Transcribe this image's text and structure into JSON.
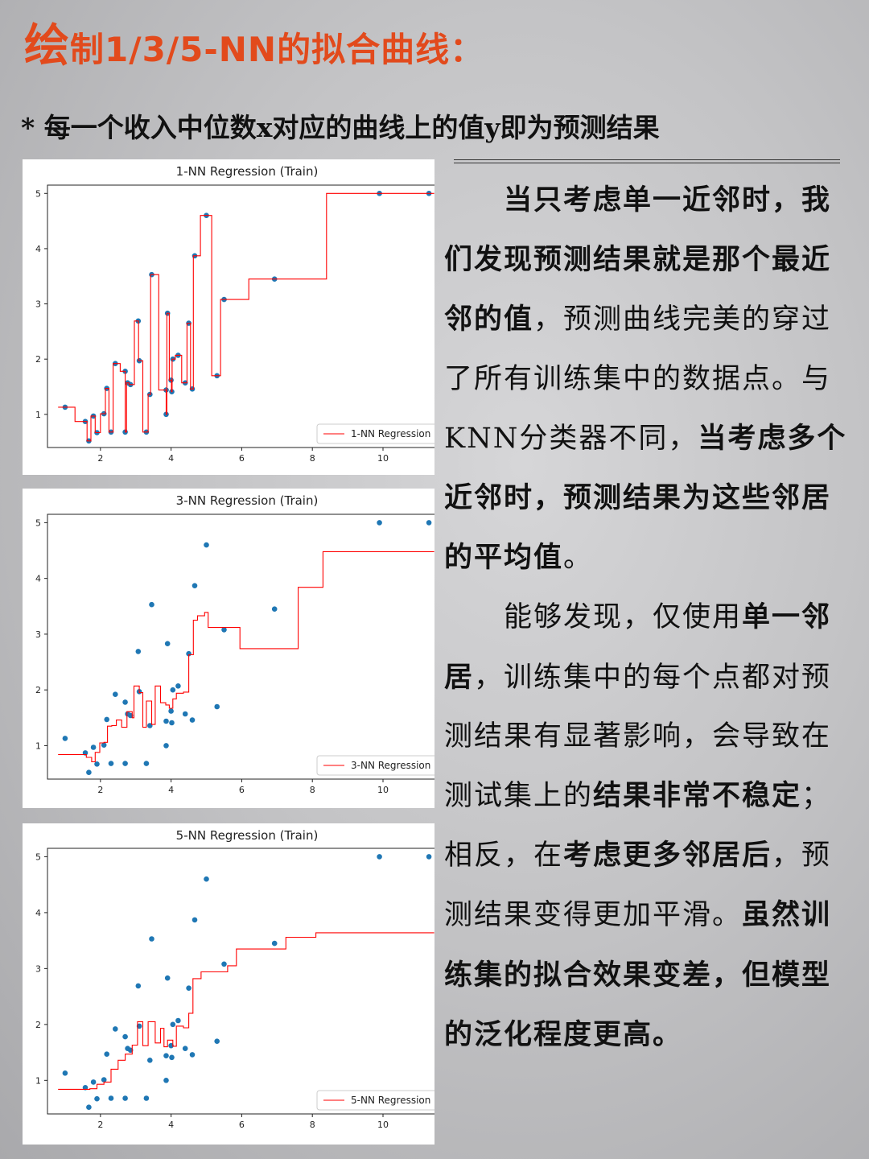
{
  "header": {
    "title_first": "绘",
    "title_rest": "制1/3/5-NN的拟合曲线：",
    "subtitle": "* 每一个收入中位数x对应的曲线上的值y即为预测结果"
  },
  "article": {
    "paragraphs": [
      [
        {
          "t": "　　当只考虑单一近邻时，我们发现预测结果就是那个最近邻的值",
          "b": true
        },
        {
          "t": "，预测曲线完美的穿过了所有训练集中的数据点。与KNN分类器不同，",
          "b": false
        },
        {
          "t": "当考虑多个近邻时，预测结果为这些邻居的平均值",
          "b": true
        },
        {
          "t": "。",
          "b": false
        }
      ],
      [
        {
          "t": "　　能够发现，仅使用",
          "b": false
        },
        {
          "t": "单一邻居",
          "b": true
        },
        {
          "t": "，训练集中的每个点都对预测结果有显著影响，会导致在测试集上的",
          "b": false
        },
        {
          "t": "结果非常不稳定",
          "b": true
        },
        {
          "t": "；相反，在",
          "b": false
        },
        {
          "t": "考虑更多邻居后",
          "b": true
        },
        {
          "t": "，预测结果变得更加平滑。",
          "b": false
        },
        {
          "t": "虽然训练集的拟合效果变差，但模型的泛化程度更高。",
          "b": true
        }
      ]
    ]
  },
  "colors": {
    "point": "#1f77b4",
    "line": "#ff0000",
    "title": "#e24a1c"
  },
  "chart_data": [
    {
      "type": "scatter+step",
      "title": "1-NN Regression (Train)",
      "legend": "1-NN Regression",
      "legend_position": "bottom-right",
      "xlim": [
        0.5,
        11.8
      ],
      "ylim": [
        0.4,
        5.15
      ],
      "xticks": [
        2,
        4,
        6,
        8,
        10
      ],
      "yticks": [
        1,
        2,
        3,
        4,
        5
      ],
      "grid": false,
      "points": [
        [
          1.0,
          1.13
        ],
        [
          1.57,
          0.87
        ],
        [
          1.67,
          0.52
        ],
        [
          1.8,
          0.97
        ],
        [
          1.9,
          0.67
        ],
        [
          2.1,
          1.01
        ],
        [
          2.18,
          1.47
        ],
        [
          2.3,
          0.68
        ],
        [
          2.42,
          1.92
        ],
        [
          2.7,
          1.78
        ],
        [
          2.7,
          0.68
        ],
        [
          2.77,
          1.57
        ],
        [
          2.85,
          1.54
        ],
        [
          3.07,
          2.69
        ],
        [
          3.1,
          1.97
        ],
        [
          3.3,
          0.68
        ],
        [
          3.4,
          1.36
        ],
        [
          3.45,
          3.53
        ],
        [
          3.86,
          1.44
        ],
        [
          3.86,
          1.0
        ],
        [
          3.9,
          2.83
        ],
        [
          4.0,
          1.62
        ],
        [
          4.02,
          1.41
        ],
        [
          4.05,
          2.0
        ],
        [
          4.2,
          2.07
        ],
        [
          4.4,
          1.57
        ],
        [
          4.5,
          2.65
        ],
        [
          4.6,
          1.46
        ],
        [
          4.67,
          3.87
        ],
        [
          5.0,
          4.6
        ],
        [
          5.3,
          1.7
        ],
        [
          5.5,
          3.08
        ],
        [
          6.93,
          3.45
        ],
        [
          9.9,
          5.0
        ],
        [
          11.3,
          5.0
        ]
      ],
      "line": [
        [
          0.8,
          1.13
        ],
        [
          1.28,
          1.13
        ],
        [
          1.28,
          0.87
        ],
        [
          1.62,
          0.87
        ],
        [
          1.62,
          0.52
        ],
        [
          1.73,
          0.52
        ],
        [
          1.73,
          0.97
        ],
        [
          1.85,
          0.97
        ],
        [
          1.85,
          0.67
        ],
        [
          2.0,
          0.67
        ],
        [
          2.0,
          1.01
        ],
        [
          2.14,
          1.01
        ],
        [
          2.14,
          1.47
        ],
        [
          2.24,
          1.47
        ],
        [
          2.24,
          0.68
        ],
        [
          2.36,
          0.68
        ],
        [
          2.36,
          1.92
        ],
        [
          2.56,
          1.92
        ],
        [
          2.56,
          1.78
        ],
        [
          2.7,
          1.78
        ],
        [
          2.7,
          0.68
        ],
        [
          2.74,
          0.68
        ],
        [
          2.74,
          1.57
        ],
        [
          2.81,
          1.57
        ],
        [
          2.81,
          1.54
        ],
        [
          2.96,
          1.54
        ],
        [
          2.96,
          2.69
        ],
        [
          3.08,
          2.69
        ],
        [
          3.08,
          1.97
        ],
        [
          3.2,
          1.97
        ],
        [
          3.2,
          0.68
        ],
        [
          3.35,
          0.68
        ],
        [
          3.35,
          1.36
        ],
        [
          3.42,
          1.36
        ],
        [
          3.42,
          3.53
        ],
        [
          3.65,
          3.53
        ],
        [
          3.65,
          1.44
        ],
        [
          3.86,
          1.44
        ],
        [
          3.86,
          1.0
        ],
        [
          3.88,
          1.0
        ],
        [
          3.88,
          2.83
        ],
        [
          3.95,
          2.83
        ],
        [
          3.95,
          1.62
        ],
        [
          4.01,
          1.62
        ],
        [
          4.01,
          1.41
        ],
        [
          4.03,
          1.41
        ],
        [
          4.03,
          2.0
        ],
        [
          4.12,
          2.0
        ],
        [
          4.12,
          2.07
        ],
        [
          4.3,
          2.07
        ],
        [
          4.3,
          1.57
        ],
        [
          4.45,
          1.57
        ],
        [
          4.45,
          2.65
        ],
        [
          4.55,
          2.65
        ],
        [
          4.55,
          1.46
        ],
        [
          4.63,
          1.46
        ],
        [
          4.63,
          3.87
        ],
        [
          4.83,
          3.87
        ],
        [
          4.83,
          4.6
        ],
        [
          5.15,
          4.6
        ],
        [
          5.15,
          1.7
        ],
        [
          5.4,
          1.7
        ],
        [
          5.4,
          3.08
        ],
        [
          6.2,
          3.08
        ],
        [
          6.2,
          3.45
        ],
        [
          8.4,
          3.45
        ],
        [
          8.4,
          5.0
        ],
        [
          11.45,
          5.0
        ]
      ]
    },
    {
      "type": "scatter+step",
      "title": "3-NN Regression (Train)",
      "legend": "3-NN Regression",
      "legend_position": "bottom-right",
      "xlim": [
        0.5,
        11.8
      ],
      "ylim": [
        0.4,
        5.15
      ],
      "xticks": [
        2,
        4,
        6,
        8,
        10
      ],
      "yticks": [
        1,
        2,
        3,
        4,
        5
      ],
      "grid": false,
      "points": [
        [
          1.0,
          1.13
        ],
        [
          1.57,
          0.87
        ],
        [
          1.67,
          0.52
        ],
        [
          1.8,
          0.97
        ],
        [
          1.9,
          0.67
        ],
        [
          2.1,
          1.01
        ],
        [
          2.18,
          1.47
        ],
        [
          2.3,
          0.68
        ],
        [
          2.42,
          1.92
        ],
        [
          2.7,
          1.78
        ],
        [
          2.7,
          0.68
        ],
        [
          2.77,
          1.57
        ],
        [
          2.85,
          1.54
        ],
        [
          3.07,
          2.69
        ],
        [
          3.1,
          1.97
        ],
        [
          3.3,
          0.68
        ],
        [
          3.4,
          1.36
        ],
        [
          3.45,
          3.53
        ],
        [
          3.86,
          1.44
        ],
        [
          3.86,
          1.0
        ],
        [
          3.9,
          2.83
        ],
        [
          4.0,
          1.62
        ],
        [
          4.02,
          1.41
        ],
        [
          4.05,
          2.0
        ],
        [
          4.2,
          2.07
        ],
        [
          4.4,
          1.57
        ],
        [
          4.5,
          2.65
        ],
        [
          4.6,
          1.46
        ],
        [
          4.67,
          3.87
        ],
        [
          5.0,
          4.6
        ],
        [
          5.3,
          1.7
        ],
        [
          5.5,
          3.08
        ],
        [
          6.93,
          3.45
        ],
        [
          9.9,
          5.0
        ],
        [
          11.3,
          5.0
        ]
      ],
      "line": [
        [
          0.8,
          0.84
        ],
        [
          1.6,
          0.84
        ],
        [
          1.6,
          0.79
        ],
        [
          1.75,
          0.79
        ],
        [
          1.75,
          0.71
        ],
        [
          1.85,
          0.71
        ],
        [
          1.85,
          0.88
        ],
        [
          1.98,
          0.88
        ],
        [
          1.98,
          1.05
        ],
        [
          2.1,
          1.05
        ],
        [
          2.1,
          1.06
        ],
        [
          2.2,
          1.06
        ],
        [
          2.2,
          1.35
        ],
        [
          2.32,
          1.35
        ],
        [
          2.32,
          1.36
        ],
        [
          2.45,
          1.36
        ],
        [
          2.45,
          1.46
        ],
        [
          2.6,
          1.46
        ],
        [
          2.6,
          1.33
        ],
        [
          2.75,
          1.33
        ],
        [
          2.75,
          1.61
        ],
        [
          2.9,
          1.61
        ],
        [
          2.9,
          1.5
        ],
        [
          2.95,
          1.5
        ],
        [
          2.95,
          2.07
        ],
        [
          3.1,
          2.07
        ],
        [
          3.1,
          1.95
        ],
        [
          3.2,
          1.95
        ],
        [
          3.2,
          1.33
        ],
        [
          3.3,
          1.33
        ],
        [
          3.3,
          1.8
        ],
        [
          3.45,
          1.8
        ],
        [
          3.45,
          1.38
        ],
        [
          3.55,
          1.38
        ],
        [
          3.55,
          2.07
        ],
        [
          3.7,
          2.07
        ],
        [
          3.7,
          1.77
        ],
        [
          3.85,
          1.77
        ],
        [
          3.85,
          1.73
        ],
        [
          3.95,
          1.73
        ],
        [
          3.95,
          1.67
        ],
        [
          4.05,
          1.67
        ],
        [
          4.05,
          1.84
        ],
        [
          4.15,
          1.84
        ],
        [
          4.15,
          1.94
        ],
        [
          4.35,
          1.94
        ],
        [
          4.35,
          1.96
        ],
        [
          4.5,
          1.96
        ],
        [
          4.5,
          2.63
        ],
        [
          4.63,
          2.63
        ],
        [
          4.63,
          3.25
        ],
        [
          4.75,
          3.25
        ],
        [
          4.75,
          3.33
        ],
        [
          4.95,
          3.33
        ],
        [
          4.95,
          3.39
        ],
        [
          5.05,
          3.39
        ],
        [
          5.05,
          3.12
        ],
        [
          5.95,
          3.12
        ],
        [
          5.95,
          2.74
        ],
        [
          7.6,
          2.74
        ],
        [
          7.6,
          3.84
        ],
        [
          8.3,
          3.84
        ],
        [
          8.3,
          4.48
        ],
        [
          11.45,
          4.48
        ]
      ]
    },
    {
      "type": "scatter+step",
      "title": "5-NN Regression (Train)",
      "legend": "5-NN Regression",
      "legend_position": "bottom-right",
      "xlim": [
        0.5,
        11.8
      ],
      "ylim": [
        0.4,
        5.15
      ],
      "xticks": [
        2,
        4,
        6,
        8,
        10
      ],
      "yticks": [
        1,
        2,
        3,
        4,
        5
      ],
      "grid": false,
      "points": [
        [
          1.0,
          1.13
        ],
        [
          1.57,
          0.87
        ],
        [
          1.67,
          0.52
        ],
        [
          1.8,
          0.97
        ],
        [
          1.9,
          0.67
        ],
        [
          2.1,
          1.01
        ],
        [
          2.18,
          1.47
        ],
        [
          2.3,
          0.68
        ],
        [
          2.42,
          1.92
        ],
        [
          2.7,
          1.78
        ],
        [
          2.7,
          0.68
        ],
        [
          2.77,
          1.57
        ],
        [
          2.85,
          1.54
        ],
        [
          3.07,
          2.69
        ],
        [
          3.1,
          1.97
        ],
        [
          3.3,
          0.68
        ],
        [
          3.4,
          1.36
        ],
        [
          3.45,
          3.53
        ],
        [
          3.86,
          1.44
        ],
        [
          3.86,
          1.0
        ],
        [
          3.9,
          2.83
        ],
        [
          4.0,
          1.62
        ],
        [
          4.02,
          1.41
        ],
        [
          4.05,
          2.0
        ],
        [
          4.2,
          2.07
        ],
        [
          4.4,
          1.57
        ],
        [
          4.5,
          2.65
        ],
        [
          4.6,
          1.46
        ],
        [
          4.67,
          3.87
        ],
        [
          5.0,
          4.6
        ],
        [
          5.3,
          1.7
        ],
        [
          5.5,
          3.08
        ],
        [
          6.93,
          3.45
        ],
        [
          9.9,
          5.0
        ],
        [
          11.3,
          5.0
        ]
      ],
      "line": [
        [
          0.8,
          0.84
        ],
        [
          1.7,
          0.84
        ],
        [
          1.7,
          0.85
        ],
        [
          1.9,
          0.85
        ],
        [
          1.9,
          0.93
        ],
        [
          2.1,
          0.93
        ],
        [
          2.1,
          0.97
        ],
        [
          2.3,
          0.97
        ],
        [
          2.3,
          1.2
        ],
        [
          2.5,
          1.2
        ],
        [
          2.5,
          1.36
        ],
        [
          2.7,
          1.36
        ],
        [
          2.7,
          1.47
        ],
        [
          2.9,
          1.47
        ],
        [
          2.9,
          1.63
        ],
        [
          3.05,
          1.63
        ],
        [
          3.05,
          2.05
        ],
        [
          3.2,
          2.05
        ],
        [
          3.2,
          1.62
        ],
        [
          3.35,
          1.62
        ],
        [
          3.35,
          2.05
        ],
        [
          3.55,
          2.05
        ],
        [
          3.55,
          1.67
        ],
        [
          3.7,
          1.67
        ],
        [
          3.7,
          1.93
        ],
        [
          3.8,
          1.93
        ],
        [
          3.8,
          1.6
        ],
        [
          3.9,
          1.6
        ],
        [
          3.9,
          1.72
        ],
        [
          4.05,
          1.72
        ],
        [
          4.05,
          1.61
        ],
        [
          4.15,
          1.61
        ],
        [
          4.15,
          1.97
        ],
        [
          4.35,
          1.97
        ],
        [
          4.35,
          1.94
        ],
        [
          4.5,
          1.94
        ],
        [
          4.5,
          2.2
        ],
        [
          4.62,
          2.2
        ],
        [
          4.62,
          2.82
        ],
        [
          4.85,
          2.82
        ],
        [
          4.85,
          2.94
        ],
        [
          5.6,
          2.94
        ],
        [
          5.6,
          3.05
        ],
        [
          5.85,
          3.05
        ],
        [
          5.85,
          3.35
        ],
        [
          7.25,
          3.35
        ],
        [
          7.25,
          3.56
        ],
        [
          8.1,
          3.56
        ],
        [
          8.1,
          3.64
        ],
        [
          11.45,
          3.64
        ]
      ]
    }
  ]
}
